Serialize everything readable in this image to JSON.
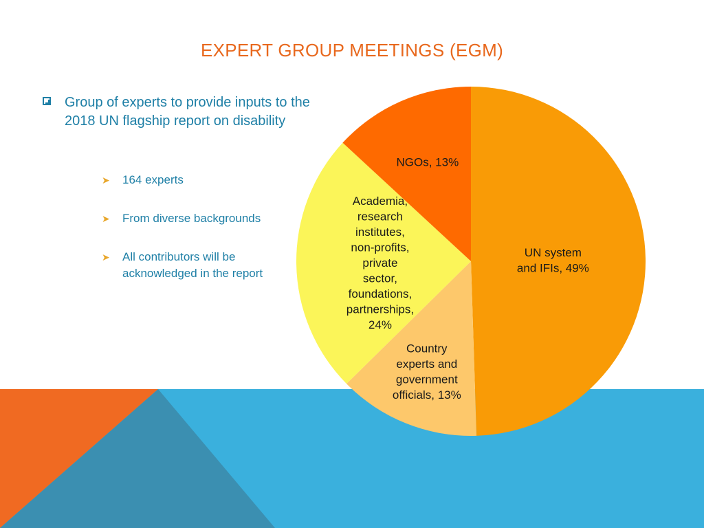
{
  "slide": {
    "title": "EXPERT GROUP MEETINGS (EGM)",
    "main_bullet": "Group of experts to provide inputs to the 2018 UN flagship report on disability",
    "sub_bullets": [
      "164 experts",
      "From diverse backgrounds",
      "All contributors will be acknowledged in the report"
    ],
    "colors": {
      "title": "#e8681d",
      "text": "#1e7fa6",
      "band_blue": "#3ab0dd",
      "band_orange": "#f06a22",
      "band_dark": "#3b8fb1"
    }
  },
  "chart_data": {
    "type": "pie",
    "title": "",
    "slices": [
      {
        "label": "UN system and IFIs, 49%",
        "lines": [
          "UN system",
          "and IFIs, 49%"
        ],
        "value": 49,
        "color": "#f99b06"
      },
      {
        "label": "Country experts and government officials, 13%",
        "lines": [
          "Country",
          "experts and",
          "government",
          "officials, 13%"
        ],
        "value": 13,
        "color": "#fdc86b"
      },
      {
        "label": "Academia, research institutes, non-profits, private sector, foundations, partnerships, 24%",
        "lines": [
          "Academia,",
          "research",
          "institutes,",
          "non-profits,",
          "private",
          "sector,",
          "foundations,",
          "partnerships,",
          "24%"
        ],
        "value": 24,
        "color": "#fbf559"
      },
      {
        "label": "NGOs, 13%",
        "lines": [
          "NGOs, 13%"
        ],
        "value": 13,
        "color": "#fe6a00"
      }
    ]
  }
}
